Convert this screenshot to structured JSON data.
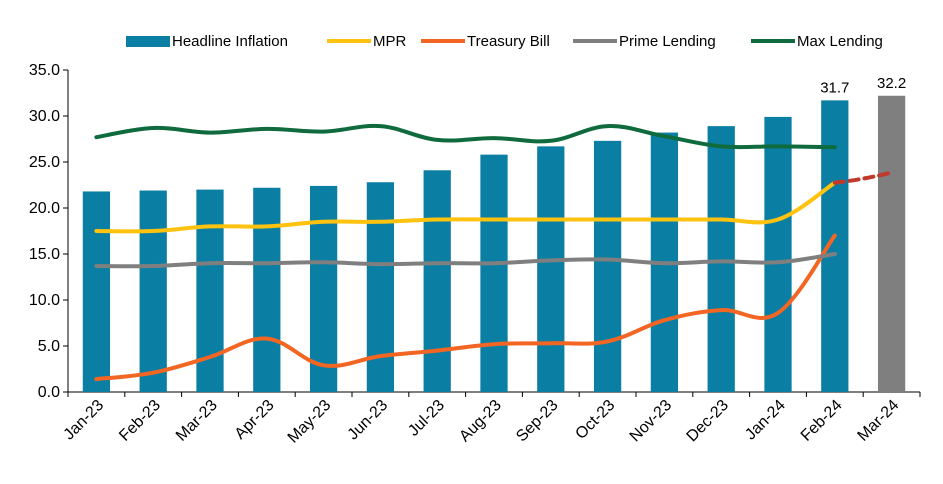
{
  "chart_data": {
    "type": "bar",
    "categories": [
      "Jan-23",
      "Feb-23",
      "Mar-23",
      "Apr-23",
      "May-23",
      "Jun-23",
      "Jul-23",
      "Aug-23",
      "Sep-23",
      "Oct-23",
      "Nov-23",
      "Dec-23",
      "Jan-24",
      "Feb-24",
      "Mar-24"
    ],
    "ylim": [
      0,
      35
    ],
    "yticks": [
      "0.0",
      "5.0",
      "10.0",
      "15.0",
      "20.0",
      "25.0",
      "30.0",
      "35.0"
    ],
    "grid": false,
    "legend_position": "top",
    "series": [
      {
        "name": "Headline Inflation",
        "kind": "bar",
        "color": "#0b7fa3",
        "values": [
          21.8,
          21.9,
          22.0,
          22.2,
          22.4,
          22.8,
          24.1,
          25.8,
          26.7,
          27.3,
          28.2,
          28.9,
          29.9,
          31.7,
          null
        ]
      },
      {
        "name": "MPR",
        "kind": "line",
        "color": "#ffc20e",
        "values": [
          17.5,
          17.5,
          18.0,
          18.0,
          18.5,
          18.5,
          18.75,
          18.75,
          18.75,
          18.75,
          18.75,
          18.75,
          18.75,
          22.75,
          null
        ]
      },
      {
        "name": "Treasury Bill",
        "kind": "line",
        "color": "#f26522",
        "values": [
          1.4,
          2.1,
          3.8,
          5.8,
          2.9,
          3.9,
          4.5,
          5.2,
          5.3,
          5.5,
          7.8,
          8.9,
          8.6,
          17.0,
          null
        ]
      },
      {
        "name": "Prime Lending",
        "kind": "line",
        "color": "#7f7f7f",
        "values": [
          13.7,
          13.7,
          14.0,
          14.0,
          14.1,
          13.9,
          14.0,
          14.0,
          14.3,
          14.4,
          14.0,
          14.2,
          14.1,
          15.0,
          null
        ]
      },
      {
        "name": "Max Lending",
        "kind": "line",
        "color": "#0f6b3d",
        "values": [
          27.7,
          28.7,
          28.2,
          28.6,
          28.3,
          28.9,
          27.4,
          27.6,
          27.3,
          28.9,
          27.8,
          26.7,
          26.7,
          26.6,
          null
        ]
      }
    ],
    "forecast": {
      "bar": {
        "category": "Mar-24",
        "value": 32.2,
        "color": "#7f7f7f"
      },
      "line": {
        "from_category": "Feb-24",
        "to_category": "Mar-24",
        "values": [
          22.75,
          23.8
        ],
        "color": "#c0392b",
        "style": "dashed"
      }
    },
    "data_labels": [
      {
        "category": "Feb-24",
        "text": "31.7"
      },
      {
        "category": "Mar-24",
        "text": "32.2"
      }
    ]
  }
}
